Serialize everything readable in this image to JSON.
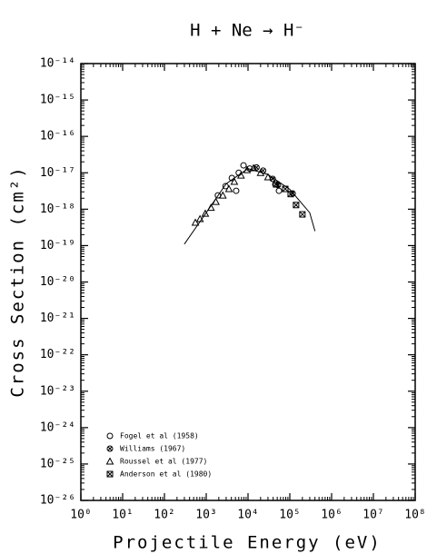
{
  "chart_data": {
    "type": "scatter",
    "title": "H + Ne → H⁻",
    "x_label": "Projectile Energy (eV)",
    "y_label": "Cross Section (cm²)",
    "xscale": "log",
    "yscale": "log",
    "minor_ticks": true,
    "xlim": [
      1,
      100000000
    ],
    "ylim": [
      1e-26,
      1e-14
    ],
    "xticks": [
      {
        "value": 1,
        "label": "10⁰"
      },
      {
        "value": 10,
        "label": "10¹"
      },
      {
        "value": 100,
        "label": "10²"
      },
      {
        "value": 1000,
        "label": "10³"
      },
      {
        "value": 10000,
        "label": "10⁴"
      },
      {
        "value": 100000,
        "label": "10⁵"
      },
      {
        "value": 1000000,
        "label": "10⁶"
      },
      {
        "value": 10000000,
        "label": "10⁷"
      },
      {
        "value": 100000000,
        "label": "10⁸"
      }
    ],
    "yticks": [
      {
        "value": 1e-26,
        "label": "10⁻²⁶"
      },
      {
        "value": 1e-25,
        "label": "10⁻²⁵"
      },
      {
        "value": 1e-24,
        "label": "10⁻²⁴"
      },
      {
        "value": 1e-23,
        "label": "10⁻²³"
      },
      {
        "value": 1e-22,
        "label": "10⁻²²"
      },
      {
        "value": 1e-21,
        "label": "10⁻²¹"
      },
      {
        "value": 1e-20,
        "label": "10⁻²⁰"
      },
      {
        "value": 1e-19,
        "label": "10⁻¹⁹"
      },
      {
        "value": 1e-18,
        "label": "10⁻¹⁸"
      },
      {
        "value": 1e-17,
        "label": "10⁻¹⁷"
      },
      {
        "value": 1e-16,
        "label": "10⁻¹⁶"
      },
      {
        "value": 1e-15,
        "label": "10⁻¹⁵"
      },
      {
        "value": 1e-14,
        "label": "10⁻¹⁴"
      }
    ],
    "legend": "lower left",
    "color": "#000000",
    "curve": {
      "x": [
        300,
        1000,
        3000,
        10000,
        30000,
        100000,
        300000,
        400000
      ],
      "values": [
        1.1e-19,
        8e-19,
        5e-18,
        1.3e-17,
        9e-18,
        3.5e-18,
        8e-19,
        2.5e-19
      ]
    },
    "series": [
      {
        "name": "Fogel et al (1958)",
        "marker": "circle",
        "x": [
          1900,
          2900,
          4100,
          5200,
          6000,
          7800,
          11000,
          45000,
          55000
        ],
        "values": [
          2.4e-18,
          4.3e-18,
          7.2e-18,
          3.2e-18,
          1e-17,
          1.6e-17,
          1.3e-17,
          4.8e-18,
          3.2e-18
        ]
      },
      {
        "name": "Williams (1967)",
        "marker": "circle-cross",
        "x": [
          16000,
          23000,
          39000,
          52000,
          117000
        ],
        "values": [
          1.4e-17,
          1.15e-17,
          6.8e-18,
          4.6e-18,
          2.7e-18
        ]
      },
      {
        "name": "Roussel et al (1977)",
        "marker": "triangle",
        "x": [
          550,
          710,
          950,
          1300,
          1700,
          2500,
          3500,
          4700,
          6800,
          9500,
          13500,
          20000,
          30000
        ],
        "values": [
          4.3e-19,
          5.4e-19,
          7.6e-19,
          1.1e-18,
          1.6e-18,
          2.4e-18,
          3.6e-18,
          5.7e-18,
          8.5e-18,
          1.2e-17,
          1.35e-17,
          1e-17,
          7.6e-18
        ]
      },
      {
        "name": "Anderson et al (1980)",
        "marker": "square-cross",
        "x": [
          47000,
          78000,
          105000,
          141000,
          200000
        ],
        "values": [
          4.8e-18,
          3.6e-18,
          2.6e-18,
          1.3e-18,
          7.2e-19
        ]
      }
    ]
  }
}
